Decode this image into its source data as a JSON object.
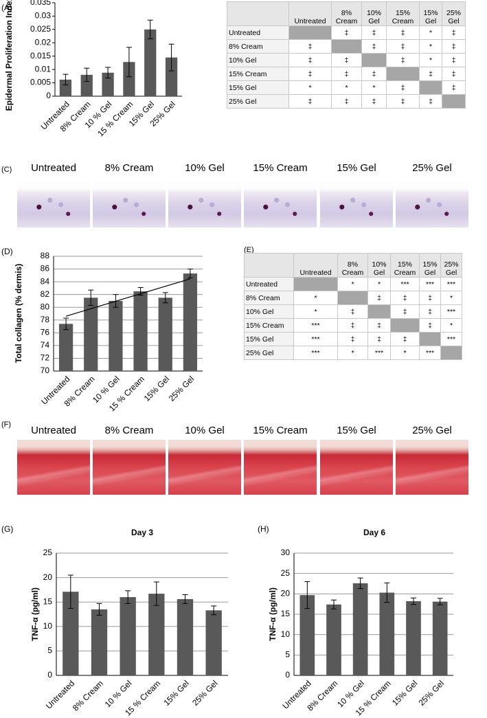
{
  "chart_data": [
    {
      "type": "bar",
      "panel_label": "(A)",
      "y_label": "Epidermal Proliferation Index",
      "categories": [
        "Untreated",
        "8% Cream",
        "10 % Gel",
        "15 % Cream",
        "15% Gel",
        "25% Gel"
      ],
      "values": [
        0.0062,
        0.008,
        0.0088,
        0.0128,
        0.025,
        0.0145
      ],
      "errors": [
        0.002,
        0.0025,
        0.002,
        0.0055,
        0.0035,
        0.005
      ],
      "color": "#595959",
      "ylim": [
        0,
        0.035
      ],
      "yticks": [
        0,
        0.005,
        0.01,
        0.015,
        0.02,
        0.025,
        0.03,
        0.035
      ],
      "grid": false,
      "trendline": false
    },
    {
      "type": "bar",
      "panel_label": "(D)",
      "y_label": "Total collagen (% dermis)",
      "categories": [
        "Untreated",
        "8% Cream",
        "10 % Gel",
        "15 % Cream",
        "15% Gel",
        "25% Gel"
      ],
      "values": [
        77.4,
        81.5,
        81.0,
        82.5,
        81.5,
        85.3
      ],
      "errors": [
        0.9,
        1.2,
        1.0,
        0.6,
        0.8,
        0.7
      ],
      "color": "#595959",
      "ylim": [
        70,
        88
      ],
      "yticks": [
        70,
        72,
        74,
        76,
        78,
        80,
        82,
        84,
        86,
        88
      ],
      "grid": true,
      "trendline": true
    },
    {
      "type": "bar",
      "panel_label": "(G)",
      "title": "Day 3",
      "y_label": "TNF-α (pg/ml)",
      "categories": [
        "Untreated",
        "8% Cream",
        "10 % Gel",
        "15 % Cream",
        "15% Gel",
        "25% Gel"
      ],
      "values": [
        17.1,
        13.5,
        16.0,
        16.7,
        15.6,
        13.3
      ],
      "errors": [
        3.4,
        1.2,
        1.3,
        2.4,
        0.9,
        0.9
      ],
      "color": "#595959",
      "ylim": [
        0,
        25
      ],
      "yticks": [
        0,
        5,
        10,
        15,
        20,
        25
      ],
      "grid": true,
      "trendline": false
    },
    {
      "type": "bar",
      "panel_label": "(H)",
      "title": "Day 6",
      "y_label": "TNF-α (pg/ml)",
      "categories": [
        "Untreated",
        "8% Cream",
        "10 % Gel",
        "15 % Cream",
        "15% Gel",
        "25% Gel"
      ],
      "values": [
        19.7,
        17.4,
        22.6,
        20.3,
        18.2,
        18.1
      ],
      "errors": [
        3.3,
        1.1,
        1.3,
        2.4,
        0.8,
        0.8
      ],
      "color": "#595959",
      "ylim": [
        0,
        30
      ],
      "yticks": [
        0,
        5,
        10,
        15,
        20,
        25,
        30
      ],
      "grid": true,
      "trendline": false
    }
  ],
  "tables": [
    {
      "panel_label": "(B)",
      "columns": [
        "Untreated",
        "8% Cream",
        "10% Gel",
        "15% Cream",
        "15% Gel",
        "25% Gel"
      ],
      "rows": [
        {
          "label": "Untreated",
          "cells": [
            null,
            "‡",
            "‡",
            "‡",
            "*",
            "‡"
          ]
        },
        {
          "label": "8% Cream",
          "cells": [
            "‡",
            null,
            "‡",
            "‡",
            "*",
            "‡"
          ]
        },
        {
          "label": "10% Gel",
          "cells": [
            "‡",
            "‡",
            null,
            "‡",
            "*",
            "‡"
          ]
        },
        {
          "label": "15% Cream",
          "cells": [
            "‡",
            "‡",
            "‡",
            null,
            "‡",
            "‡"
          ]
        },
        {
          "label": "15% Gel",
          "cells": [
            "*",
            "*",
            "*",
            "‡",
            null,
            "‡"
          ]
        },
        {
          "label": "25% Gel",
          "cells": [
            "‡",
            "‡",
            "‡",
            "‡",
            "‡",
            null
          ]
        }
      ]
    },
    {
      "panel_label": "(E)",
      "columns": [
        "Untreated",
        "8% Cream",
        "10% Gel",
        "15% Cream",
        "15% Gel",
        "25% Gel"
      ],
      "rows": [
        {
          "label": "Untreated",
          "cells": [
            null,
            "*",
            "*",
            "***",
            "***",
            "***"
          ]
        },
        {
          "label": "8% Cream",
          "cells": [
            "*",
            null,
            "‡",
            "‡",
            "‡",
            "*"
          ]
        },
        {
          "label": "10% Gel",
          "cells": [
            "*",
            "‡",
            null,
            "‡",
            "‡",
            "***"
          ]
        },
        {
          "label": "15% Cream",
          "cells": [
            "***",
            "‡",
            "‡",
            null,
            "‡",
            "*"
          ]
        },
        {
          "label": "15% Gel",
          "cells": [
            "***",
            "‡",
            "‡",
            "‡",
            null,
            "***"
          ]
        },
        {
          "label": "25% Gel",
          "cells": [
            "***",
            "*",
            "***",
            "*",
            "***",
            null
          ]
        }
      ]
    }
  ],
  "image_panels": [
    {
      "panel_label": "(C)",
      "captions": [
        "Untreated",
        "8% Cream",
        "10% Gel",
        "15% Cream",
        "15% Gel",
        "25% Gel"
      ]
    },
    {
      "panel_label": "(F)",
      "captions": [
        "Untreated",
        "8% Cream",
        "10% Gel",
        "15% Cream",
        "15% Gel",
        "25% Gel"
      ]
    }
  ]
}
